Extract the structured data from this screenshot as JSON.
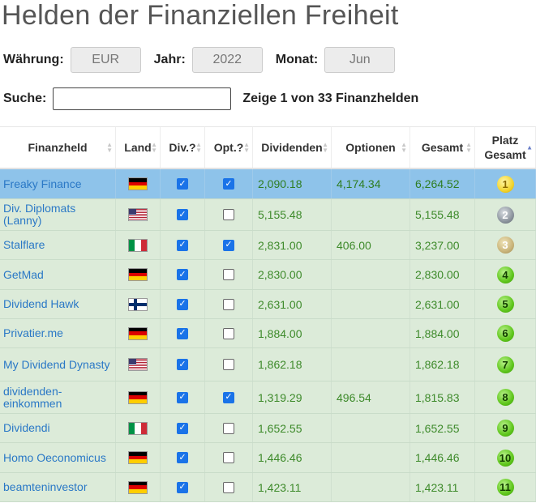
{
  "page": {
    "title": "Helden der Finanziellen Freiheit"
  },
  "filters": {
    "currency_label": "Währung:",
    "currency_value": "EUR",
    "year_label": "Jahr:",
    "year_value": "2022",
    "month_label": "Monat:",
    "month_value": "Jun",
    "search_label": "Suche:",
    "search_value": "",
    "count_text": "Zeige 1 von 33 Finanzhelden"
  },
  "table": {
    "headers": [
      "Finanzheld",
      "Land",
      "Div.?",
      "Opt.?",
      "Dividenden",
      "Optionen",
      "Gesamt",
      "Platz\nGesamt"
    ],
    "sorted_column": "Platz Gesamt",
    "sort_direction": "ascending",
    "rows": [
      {
        "name": "Freaky Finance",
        "country": "de",
        "div": true,
        "opt": true,
        "dividends": "2,090.18",
        "options": "4,174.34",
        "total": "6,264.52",
        "rank": "1",
        "medal": "gold",
        "selected": true
      },
      {
        "name": "Div. Diplomats (Lanny)",
        "country": "us",
        "div": true,
        "opt": false,
        "dividends": "5,155.48",
        "options": "",
        "total": "5,155.48",
        "rank": "2",
        "medal": "silver",
        "selected": false
      },
      {
        "name": "Stalflare",
        "country": "it",
        "div": true,
        "opt": true,
        "dividends": "2,831.00",
        "options": "406.00",
        "total": "3,237.00",
        "rank": "3",
        "medal": "bronze",
        "selected": false
      },
      {
        "name": "GetMad",
        "country": "de",
        "div": true,
        "opt": false,
        "dividends": "2,830.00",
        "options": "",
        "total": "2,830.00",
        "rank": "4",
        "medal": "green",
        "selected": false
      },
      {
        "name": "Dividend Hawk",
        "country": "fi",
        "div": true,
        "opt": false,
        "dividends": "2,631.00",
        "options": "",
        "total": "2,631.00",
        "rank": "5",
        "medal": "green",
        "selected": false
      },
      {
        "name": "Privatier.me",
        "country": "de",
        "div": true,
        "opt": false,
        "dividends": "1,884.00",
        "options": "",
        "total": "1,884.00",
        "rank": "6",
        "medal": "green",
        "selected": false
      },
      {
        "name": "My Dividend Dynasty",
        "country": "us",
        "div": true,
        "opt": false,
        "dividends": "1,862.18",
        "options": "",
        "total": "1,862.18",
        "rank": "7",
        "medal": "green",
        "selected": false
      },
      {
        "name": "dividenden-einkommen",
        "country": "de",
        "div": true,
        "opt": true,
        "dividends": "1,319.29",
        "options": "496.54",
        "total": "1,815.83",
        "rank": "8",
        "medal": "green",
        "selected": false
      },
      {
        "name": "Dividendi",
        "country": "it",
        "div": true,
        "opt": false,
        "dividends": "1,652.55",
        "options": "",
        "total": "1,652.55",
        "rank": "9",
        "medal": "green",
        "selected": false
      },
      {
        "name": "Homo Oeconomicus",
        "country": "de",
        "div": true,
        "opt": false,
        "dividends": "1,446.46",
        "options": "",
        "total": "1,446.46",
        "rank": "10",
        "medal": "green",
        "selected": false
      },
      {
        "name": "beamteninvestor",
        "country": "de",
        "div": true,
        "opt": false,
        "dividends": "1,423.11",
        "options": "",
        "total": "1,423.11",
        "rank": "11",
        "medal": "green",
        "selected": false
      }
    ]
  },
  "colors": {
    "row_background": "#dcebd9",
    "selected_row_background": "#8ec3ea",
    "link": "#2a78c6",
    "amount": "#3d8a2a",
    "checkbox_checked": "#1a73e8"
  }
}
